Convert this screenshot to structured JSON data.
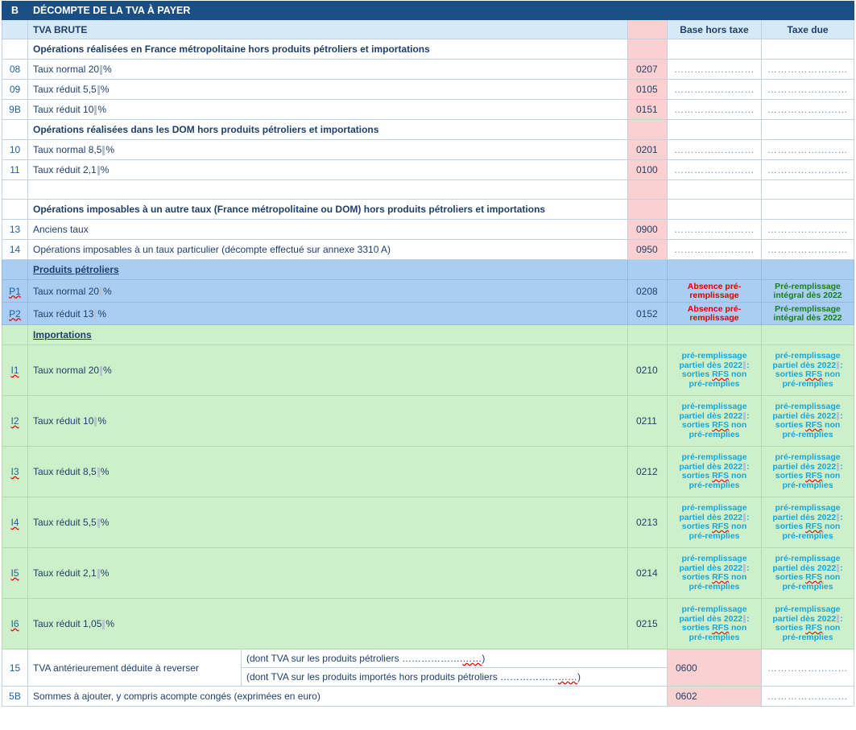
{
  "header": {
    "letter": "B",
    "title": "DÉCOMPTE DE LA TVA À PAYER"
  },
  "subheader": {
    "label": "TVA BRUTE",
    "col_base": "Base hors taxe",
    "col_tax": "Taxe due"
  },
  "dots": "……………………",
  "sections": {
    "metro": "Opérations réalisées en France métropolitaine hors produits pétroliers et importations",
    "dom": "Opérations réalisées dans les DOM hors produits pétroliers et importations",
    "other": "Opérations imposables à un autre taux (France métropolitaine ou DOM) hors produits pétroliers et importations",
    "petro": "Produits pétroliers",
    "imports": "Importations"
  },
  "rows_metro": [
    {
      "id": "08",
      "label_a": "Taux normal 20",
      "label_b": "%",
      "code": "0207"
    },
    {
      "id": "09",
      "label_a": "Taux réduit 5,5",
      "label_b": "%",
      "code": "0105"
    },
    {
      "id": "9B",
      "label_a": "Taux réduit 10",
      "label_b": "%",
      "code": "0151"
    }
  ],
  "rows_dom": [
    {
      "id": "10",
      "label_a": "Taux normal 8,5",
      "label_b": "%",
      "code": "0201"
    },
    {
      "id": "11",
      "label_a": "Taux réduit 2,1",
      "label_b": "%",
      "code": "0100"
    }
  ],
  "rows_other": [
    {
      "id": "13",
      "label": "Anciens taux",
      "code": "0900"
    },
    {
      "id": "14",
      "label": "Opérations imposables à un taux particulier (décompte effectué sur annexe 3310 A)",
      "code": "0950"
    }
  ],
  "rows_petro": [
    {
      "id": "P1",
      "label_a": "Taux normal 20",
      "label_b": "%",
      "code": "0208"
    },
    {
      "id": "P2",
      "label_a": "Taux réduit 13",
      "label_b": "%",
      "code": "0152"
    }
  ],
  "petro_notes": {
    "base_line1": "Absence pré-",
    "base_line2": "remplissage",
    "tax_line1": "Pré-remplissage",
    "tax_line2": "intégral dès 2022"
  },
  "rows_imports": [
    {
      "id": "I1",
      "label_a": "Taux normal 20",
      "label_b": "%",
      "code": "0210"
    },
    {
      "id": "I2",
      "label_a": "Taux réduit 10",
      "label_b": "%",
      "code": "0211"
    },
    {
      "id": "I3",
      "label_a": "Taux réduit 8,5",
      "label_b": "%",
      "code": "0212"
    },
    {
      "id": "I4",
      "label_a": "Taux réduit 5,5",
      "label_b": "%",
      "code": "0213"
    },
    {
      "id": "I5",
      "label_a": "Taux réduit 2,1",
      "label_b": "%",
      "code": "0214"
    },
    {
      "id": "I6",
      "label_a": "Taux réduit 1,05",
      "label_b": "%",
      "code": "0215"
    }
  ],
  "import_note": {
    "l1": "pré-remplissage",
    "l2a": "partiel dès 2022",
    "l2b": ":",
    "l3a": "sorties",
    "l3b": "RFS",
    "l3c": "non",
    "l4": "pré-remplies"
  },
  "row15": {
    "id": "15",
    "label": "TVA antérieurement déduite à reverser",
    "sub1_text": "(dont TVA sur les produits pétroliers ……………….",
    "sub1_dots": "……",
    "sub1_end": ")",
    "sub2_text": "(dont TVA sur les produits importés hors produits pétroliers ………………",
    "sub2_dots": "……",
    "sub2_end": ")",
    "code": "0600"
  },
  "row5b": {
    "id": "5B",
    "label": "Sommes à ajouter, y compris acompte congés (exprimées en euro)",
    "code": "0602"
  }
}
